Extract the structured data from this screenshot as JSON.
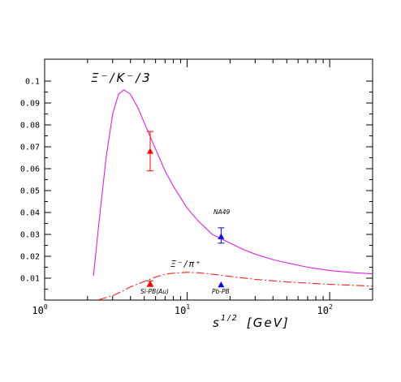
{
  "chart_data": {
    "type": "line",
    "x_scale": "log",
    "xlim": [
      1,
      200
    ],
    "ylim": [
      0,
      0.11
    ],
    "y_ticks": [
      "0.01",
      "0.02",
      "0.03",
      "0.04",
      "0.05",
      "0.06",
      "0.07",
      "0.08",
      "0.09",
      "0.1"
    ],
    "x_ticks": [
      {
        "base": "10",
        "exp": "0"
      },
      {
        "base": "10",
        "exp": "1"
      },
      {
        "base": "10",
        "exp": "2"
      }
    ],
    "xlabel": {
      "main": "s",
      "sup": "1/2",
      "unit": "[GeV]"
    },
    "series": [
      {
        "name": "Ξ⁻/K⁻/3",
        "label_text": "Ξ⁻/K⁻/3",
        "color": "#e020e0",
        "style": "solid",
        "x": [
          2.2,
          2.4,
          2.7,
          3.0,
          3.3,
          3.6,
          4.0,
          4.5,
          5.0,
          6.0,
          7.0,
          8.0,
          10,
          12,
          15,
          17.3,
          20,
          25,
          30,
          40,
          50,
          70,
          100,
          150,
          200
        ],
        "y": [
          0.011,
          0.035,
          0.065,
          0.085,
          0.094,
          0.096,
          0.094,
          0.088,
          0.081,
          0.069,
          0.059,
          0.052,
          0.042,
          0.036,
          0.03,
          0.028,
          0.026,
          0.023,
          0.021,
          0.0185,
          0.017,
          0.015,
          0.0135,
          0.0125,
          0.012
        ]
      },
      {
        "name": "Ξ⁻/π⁺",
        "label_text": "Ξ⁻/π⁺",
        "color": "#ff2020",
        "style": "dashdot",
        "x": [
          2.4,
          3.0,
          3.5,
          4.0,
          5.0,
          6.0,
          7.0,
          8.0,
          10,
          12,
          15,
          20,
          30,
          50,
          100,
          200
        ],
        "y": [
          0.0002,
          0.002,
          0.004,
          0.006,
          0.0085,
          0.0105,
          0.0118,
          0.0123,
          0.0127,
          0.0125,
          0.0118,
          0.0108,
          0.0095,
          0.0083,
          0.0072,
          0.0064
        ]
      }
    ],
    "points": [
      {
        "label": "",
        "x": 5.5,
        "y": 0.068,
        "ylo": 0.059,
        "yhi": 0.077,
        "color": "#ff0000"
      },
      {
        "label": "NA49",
        "x": 17.3,
        "y": 0.029,
        "ylo": 0.026,
        "yhi": 0.033,
        "color": "#0000ff"
      },
      {
        "label": "Si-PB(Au)",
        "x": 5.5,
        "y": 0.0075,
        "ylo": 0.0062,
        "yhi": 0.0088,
        "color": "#ff0000"
      },
      {
        "label": "Pb-PB",
        "x": 17.3,
        "y": 0.007,
        "ylo": null,
        "yhi": null,
        "color": "#0000ff"
      }
    ]
  }
}
